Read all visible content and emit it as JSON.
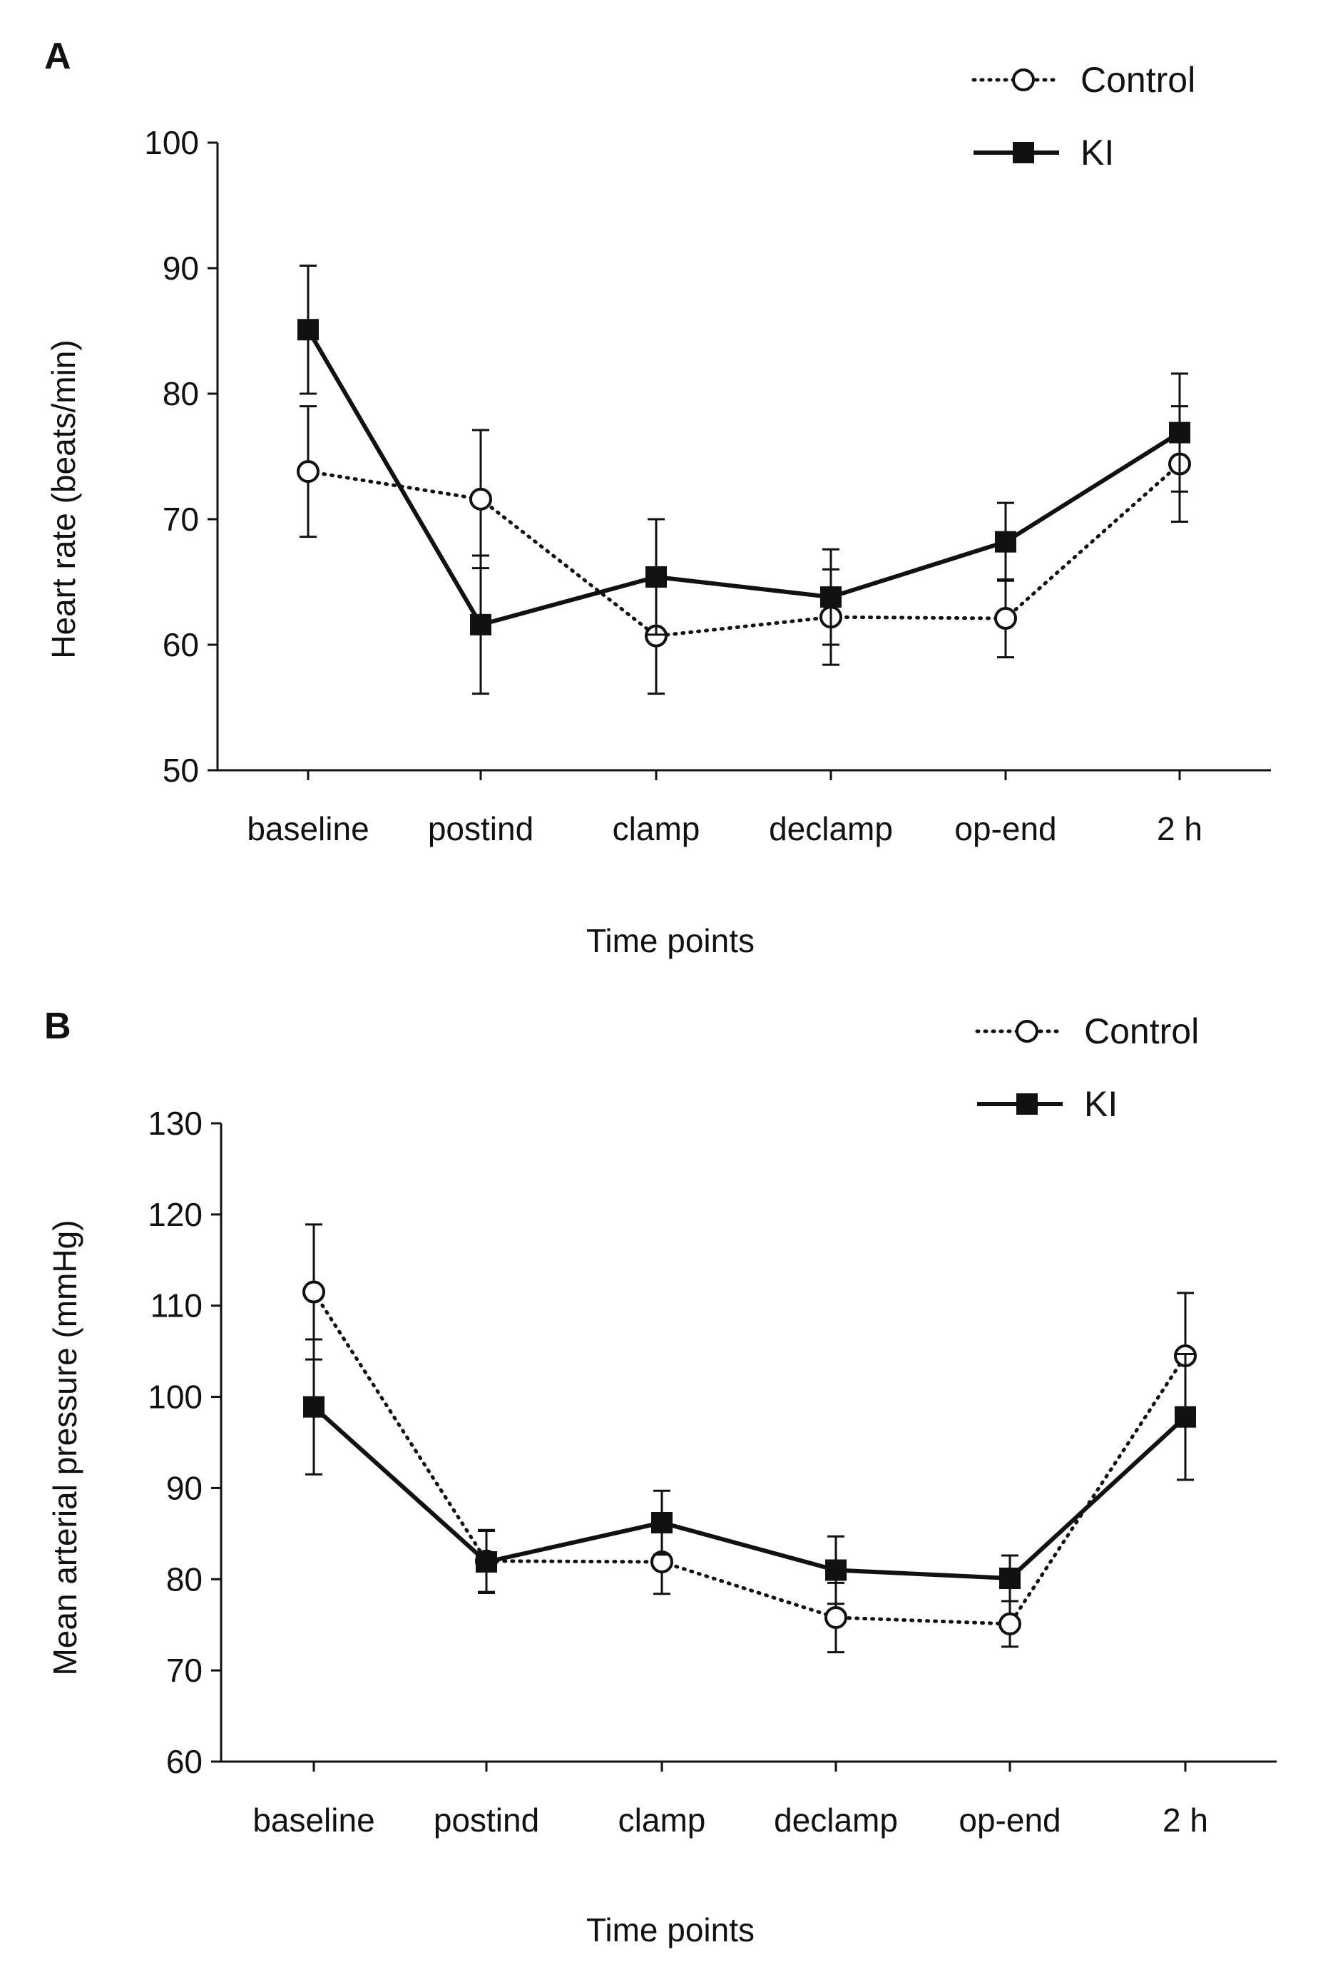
{
  "chart_data": [
    {
      "panel": "A",
      "type": "line",
      "ylabel": "Heart rate (beats/min)",
      "xlabel": "Time points",
      "ylim": [
        50,
        100
      ],
      "yticks": [
        50,
        60,
        70,
        80,
        90,
        100
      ],
      "categories": [
        "baseline",
        "postind",
        "clamp",
        "declamp",
        "op-end",
        "2 h"
      ],
      "legend_position": "top-right",
      "grid": false,
      "series": [
        {
          "name": "Control",
          "style": "dotted-open-circle",
          "values": [
            73.8,
            71.6,
            60.7,
            62.2,
            62.1,
            74.4
          ],
          "err": [
            5.2,
            5.5,
            4.6,
            3.8,
            3.1,
            4.6
          ]
        },
        {
          "name": "KI",
          "style": "solid-filled-square",
          "values": [
            85.1,
            61.6,
            65.4,
            63.8,
            68.2,
            76.9
          ],
          "err": [
            5.1,
            5.5,
            4.6,
            3.8,
            3.1,
            4.7
          ]
        }
      ]
    },
    {
      "panel": "B",
      "type": "line",
      "ylabel": "Mean arterial pressure (mmHg)",
      "xlabel": "Time points",
      "ylim": [
        60,
        130
      ],
      "yticks": [
        60,
        70,
        80,
        90,
        100,
        110,
        120,
        130
      ],
      "categories": [
        "baseline",
        "postind",
        "clamp",
        "declamp",
        "op-end",
        "2 h"
      ],
      "legend_position": "top-right",
      "grid": false,
      "series": [
        {
          "name": "Control",
          "style": "dotted-open-circle",
          "values": [
            111.5,
            82.0,
            81.9,
            75.8,
            75.1,
            104.5
          ],
          "err": [
            7.4,
            3.4,
            3.5,
            3.8,
            2.5,
            6.9
          ]
        },
        {
          "name": "KI",
          "style": "solid-filled-square",
          "values": [
            98.9,
            81.9,
            86.2,
            81.0,
            80.1,
            97.8
          ],
          "err": [
            7.4,
            3.4,
            3.5,
            3.7,
            2.5,
            6.9
          ]
        }
      ]
    }
  ]
}
